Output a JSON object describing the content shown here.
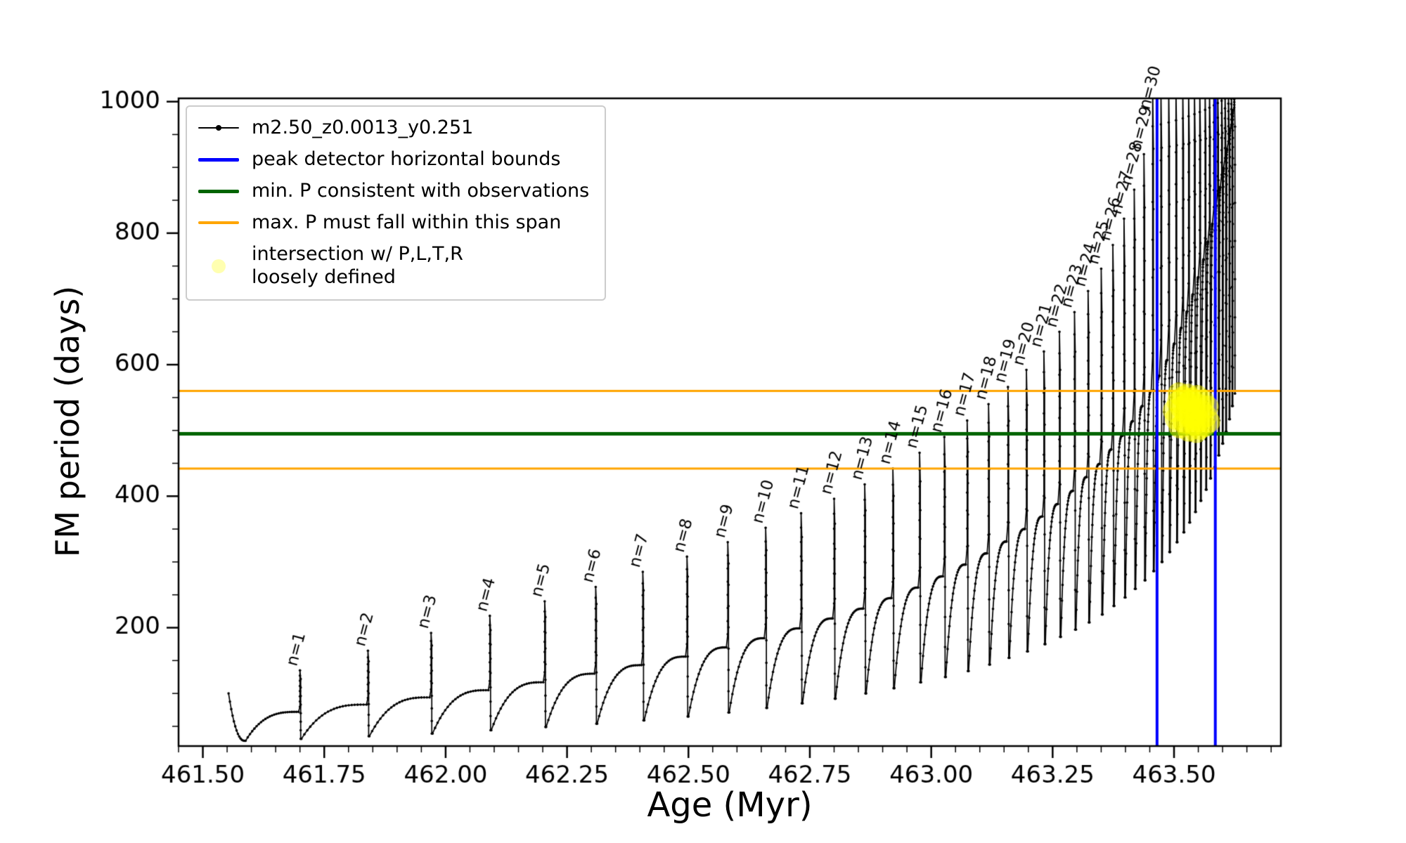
{
  "chart_data": {
    "type": "line",
    "title": "",
    "xlabel": "Age (Myr)",
    "ylabel": "FM period (days)",
    "xlim": [
      461.45,
      463.72
    ],
    "ylim": [
      20,
      1005
    ],
    "xticks": [
      461.5,
      461.75,
      462.0,
      462.25,
      462.5,
      462.75,
      463.0,
      463.25,
      463.5
    ],
    "xtick_labels": [
      "461.50",
      "461.75",
      "462.00",
      "462.25",
      "462.50",
      "462.75",
      "463.00",
      "463.25",
      "463.50"
    ],
    "yticks": [
      200,
      400,
      600,
      800,
      1000
    ],
    "x_minor_step": 0.05,
    "y_minor_step": 50,
    "grid": false,
    "legend_position": "upper-left",
    "series": [
      {
        "name": "m2.50_z0.0013_y0.251",
        "color": "#000000",
        "start": {
          "age": 461.553,
          "value": 100,
          "trough_age": 461.586,
          "trough_value": 28
        },
        "spike_columns": [
          "n",
          "age",
          "peak",
          "trough_after",
          "shoulder_before",
          "label"
        ],
        "spikes": [
          [
            1,
            461.7,
            135,
            31,
            72,
            "n=1"
          ],
          [
            2,
            461.84,
            165,
            35,
            83,
            "n=2"
          ],
          [
            3,
            461.97,
            192,
            39,
            94,
            "n=3"
          ],
          [
            4,
            462.091,
            218,
            44,
            105,
            "n=4"
          ],
          [
            5,
            462.204,
            240,
            49,
            117,
            "n=5"
          ],
          [
            6,
            462.309,
            262,
            54,
            130,
            "n=6"
          ],
          [
            7,
            462.406,
            285,
            59,
            143,
            "n=7"
          ],
          [
            8,
            462.497,
            308,
            65,
            156,
            "n=8"
          ],
          [
            9,
            462.581,
            330,
            71,
            170,
            "n=9"
          ],
          [
            10,
            462.659,
            352,
            78,
            184,
            "n=10"
          ],
          [
            11,
            462.732,
            374,
            85,
            199,
            "n=11"
          ],
          [
            12,
            462.8,
            396,
            92,
            214,
            "n=12"
          ],
          [
            13,
            462.863,
            418,
            100,
            229,
            "n=13"
          ],
          [
            14,
            462.921,
            442,
            108,
            245,
            "n=14"
          ],
          [
            15,
            462.976,
            466,
            117,
            261,
            "n=15"
          ],
          [
            16,
            463.027,
            490,
            125,
            278,
            "n=16"
          ],
          [
            17,
            463.074,
            515,
            134,
            296,
            "n=17"
          ],
          [
            18,
            463.118,
            540,
            144,
            313,
            "n=18"
          ],
          [
            19,
            463.158,
            566,
            154,
            331,
            "n=19"
          ],
          [
            20,
            463.196,
            592,
            164,
            350,
            "n=20"
          ],
          [
            21,
            463.232,
            620,
            175,
            369,
            "n=21"
          ],
          [
            22,
            463.264,
            650,
            186,
            388,
            "n=22"
          ],
          [
            23,
            463.295,
            680,
            197,
            408,
            "n=23"
          ],
          [
            24,
            463.323,
            712,
            208,
            429,
            "n=24"
          ],
          [
            25,
            463.35,
            746,
            220,
            449,
            "n=25"
          ],
          [
            26,
            463.374,
            782,
            233,
            471,
            "n=26"
          ],
          [
            27,
            463.397,
            822,
            246,
            492,
            "n=27"
          ],
          [
            28,
            463.418,
            866,
            259,
            514,
            "n=28"
          ],
          [
            29,
            463.438,
            920,
            272,
            537,
            "n=29"
          ],
          [
            30,
            463.456,
            1020,
            286,
            560,
            "n=30"
          ],
          [
            31,
            463.473,
            1020,
            300,
            583,
            null
          ],
          [
            32,
            463.489,
            1020,
            315,
            607,
            null
          ],
          [
            33,
            463.504,
            1020,
            330,
            632,
            null
          ],
          [
            34,
            463.518,
            1020,
            345,
            656,
            null
          ],
          [
            35,
            463.53,
            1020,
            360,
            681,
            null
          ],
          [
            36,
            463.542,
            1020,
            376,
            707,
            null
          ],
          [
            37,
            463.553,
            1020,
            393,
            733,
            null
          ],
          [
            38,
            463.564,
            1020,
            410,
            760,
            null
          ],
          [
            39,
            463.573,
            1020,
            427,
            787,
            null
          ],
          [
            40,
            463.582,
            1020,
            444,
            814,
            null
          ],
          [
            41,
            463.59,
            1020,
            462,
            842,
            null
          ],
          [
            42,
            463.598,
            1020,
            480,
            870,
            null
          ],
          [
            43,
            463.605,
            1020,
            498,
            899,
            null
          ],
          [
            44,
            463.612,
            1020,
            517,
            928,
            null
          ],
          [
            45,
            463.618,
            1020,
            537,
            957,
            null
          ],
          [
            46,
            463.624,
            1020,
            556,
            987,
            null
          ]
        ]
      }
    ],
    "vlines": {
      "label": "peak detector horizontal bounds",
      "color": "#0000ff",
      "x": [
        463.465,
        463.585
      ],
      "line_width": 4
    },
    "hline_min": {
      "label": "min. P consistent with observations",
      "color": "#006400",
      "y": 495,
      "line_width": 5
    },
    "hlines_span": {
      "label": "max. P must fall within this span",
      "color": "#ffa500",
      "y": [
        442,
        560
      ],
      "line_width": 3
    },
    "intersection": {
      "label": "intersection w/ P,L,T,R\nloosely defined",
      "color": "#ffff00",
      "alpha": 0.5,
      "marker_radius": 16,
      "points": [
        [
          463.5,
          530
        ],
        [
          463.504,
          518
        ],
        [
          463.508,
          543
        ],
        [
          463.512,
          505
        ],
        [
          463.515,
          535
        ],
        [
          463.518,
          550
        ],
        [
          463.521,
          512
        ],
        [
          463.524,
          527
        ],
        [
          463.527,
          541
        ],
        [
          463.53,
          500
        ],
        [
          463.533,
          520
        ],
        [
          463.536,
          548
        ],
        [
          463.539,
          533
        ],
        [
          463.542,
          509
        ],
        [
          463.545,
          524
        ],
        [
          463.548,
          552
        ],
        [
          463.551,
          515
        ],
        [
          463.554,
          538
        ],
        [
          463.557,
          529
        ],
        [
          463.56,
          545
        ],
        [
          463.563,
          507
        ],
        [
          463.566,
          522
        ],
        [
          463.569,
          536
        ],
        [
          463.572,
          513
        ],
        [
          463.51,
          556
        ],
        [
          463.528,
          554
        ],
        [
          463.546,
          498
        ],
        [
          463.534,
          544
        ],
        [
          463.552,
          503
        ],
        [
          463.54,
          517
        ]
      ]
    }
  },
  "legend": {
    "entries": [
      {
        "swatch": "line-marker",
        "color": "#000000",
        "line_width": 2,
        "label": "m2.50_z0.0013_y0.251"
      },
      {
        "swatch": "line",
        "color": "#0000ff",
        "line_width": 5,
        "label": "peak detector horizontal bounds"
      },
      {
        "swatch": "line",
        "color": "#006400",
        "line_width": 5,
        "label": "min. P consistent with observations"
      },
      {
        "swatch": "line",
        "color": "#ffa500",
        "line_width": 4,
        "label": "max. P must fall within this span"
      },
      {
        "swatch": "dot",
        "color": "#ffffb0",
        "line_width": 0,
        "label": "intersection w/ P,L,T,R\nloosely defined"
      }
    ]
  }
}
